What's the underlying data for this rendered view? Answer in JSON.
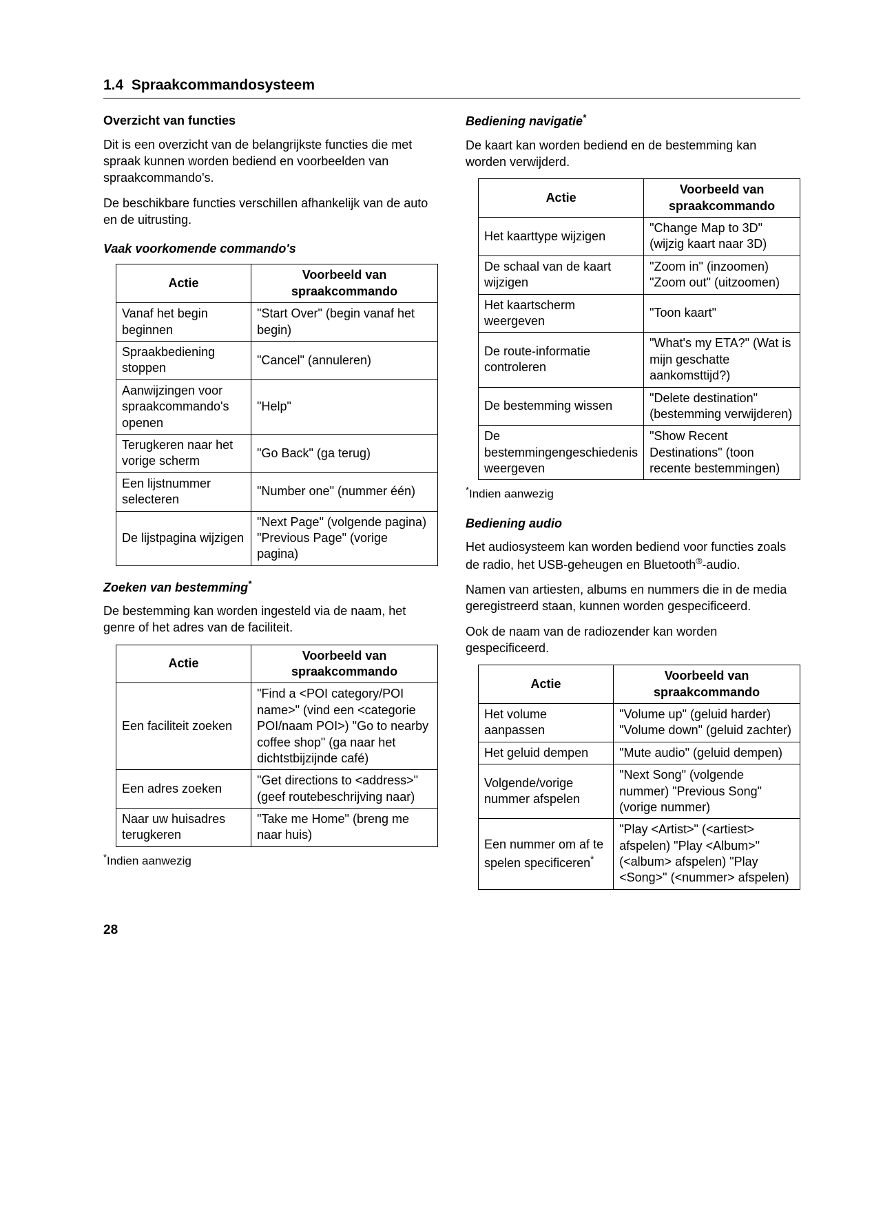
{
  "section_number": "1.4",
  "section_title": "Spraakcommandosysteem",
  "page_number": "28",
  "left": {
    "heading1": "Overzicht van functies",
    "para1": "Dit is een overzicht van de belangrijkste functies die met spraak kunnen worden bediend en voorbeelden van spraakcommando's.",
    "para2": "De beschikbare functies verschillen afhankelijk van de auto en de uitrusting.",
    "heading2": "Vaak voorkomende commando's",
    "table1": {
      "col1": "Actie",
      "col2": "Voorbeeld van spraakcommando",
      "rows": [
        [
          "Vanaf het begin beginnen",
          "\"Start Over\" (begin vanaf het begin)"
        ],
        [
          "Spraakbediening stoppen",
          "\"Cancel\" (annuleren)"
        ],
        [
          "Aanwijzingen voor spraakcommando's openen",
          "\"Help\""
        ],
        [
          "Terugkeren naar het vorige scherm",
          "\"Go Back\" (ga terug)"
        ],
        [
          "Een lijstnummer selecteren",
          "\"Number one\" (nummer één)"
        ],
        [
          "De lijstpagina wijzigen",
          "\"Next Page\" (volgende pagina) \"Previous Page\" (vorige pagina)"
        ]
      ]
    },
    "heading3": "Zoeken van bestemming",
    "para3": "De bestemming kan worden ingesteld via de naam, het genre of het adres van de faciliteit.",
    "table2": {
      "col1": "Actie",
      "col2": "Voorbeeld van spraakcommando",
      "rows": [
        [
          "Een faciliteit zoeken",
          "\"Find a <POI category/POI name>\" (vind een <categorie POI/naam POI>) \"Go to nearby coffee shop\" (ga naar het dichtstbijzijnde café)"
        ],
        [
          "Een adres zoeken",
          "\"Get directions to <address>\" (geef routebeschrijving naar)"
        ],
        [
          "Naar uw huisadres terugkeren",
          "\"Take me Home\" (breng me naar huis)"
        ]
      ]
    },
    "footnote1": "Indien aanwezig"
  },
  "right": {
    "heading1": "Bediening navigatie",
    "para1": "De kaart kan worden bediend en de bestemming kan worden verwijderd.",
    "table1": {
      "col1": "Actie",
      "col2": "Voorbeeld van spraakcommando",
      "rows": [
        [
          "Het kaarttype wijzigen",
          "\"Change Map to 3D\" (wijzig kaart naar 3D)"
        ],
        [
          "De schaal van de kaart wijzigen",
          "\"Zoom in\" (inzoomen) \"Zoom out\" (uitzoomen)"
        ],
        [
          "Het kaartscherm weergeven",
          "\"Toon kaart\""
        ],
        [
          "De route-informatie controleren",
          "\"What's my ETA?\" (Wat is mijn geschatte aankomsttijd?)"
        ],
        [
          "De bestemming wissen",
          "\"Delete destination\" (bestemming verwijderen)"
        ],
        [
          "De bestemmingengeschiedenis weergeven",
          "\"Show Recent Destinations\" (toon recente bestemmingen)"
        ]
      ]
    },
    "footnote1": "Indien aanwezig",
    "heading2": "Bediening audio",
    "para2a": "Het audiosysteem kan worden bediend voor functies zoals de radio, het USB-geheugen en Bluetooth",
    "para2b": "-audio.",
    "para3": "Namen van artiesten, albums en nummers die in de media geregistreerd staan, kunnen worden gespecificeerd.",
    "para4": "Ook de naam van de radiozender kan worden gespecificeerd.",
    "table2": {
      "col1": "Actie",
      "col2": "Voorbeeld van spraakcommando",
      "rows": [
        [
          "Het volume aanpassen",
          "\"Volume up\" (geluid harder) \"Volume down\" (geluid zachter)"
        ],
        [
          "Het geluid dempen",
          "\"Mute audio\" (geluid dempen)"
        ],
        [
          "Volgende/vorige nummer afspelen",
          "\"Next Song\" (volgende nummer) \"Previous Song\" (vorige nummer)"
        ],
        [
          "Een nummer om af te spelen specificeren",
          "\"Play <Artist>\" (<artiest> afspelen) \"Play <Album>\" (<album> afspelen) \"Play <Song>\" (<nummer> afspelen)"
        ]
      ]
    }
  }
}
